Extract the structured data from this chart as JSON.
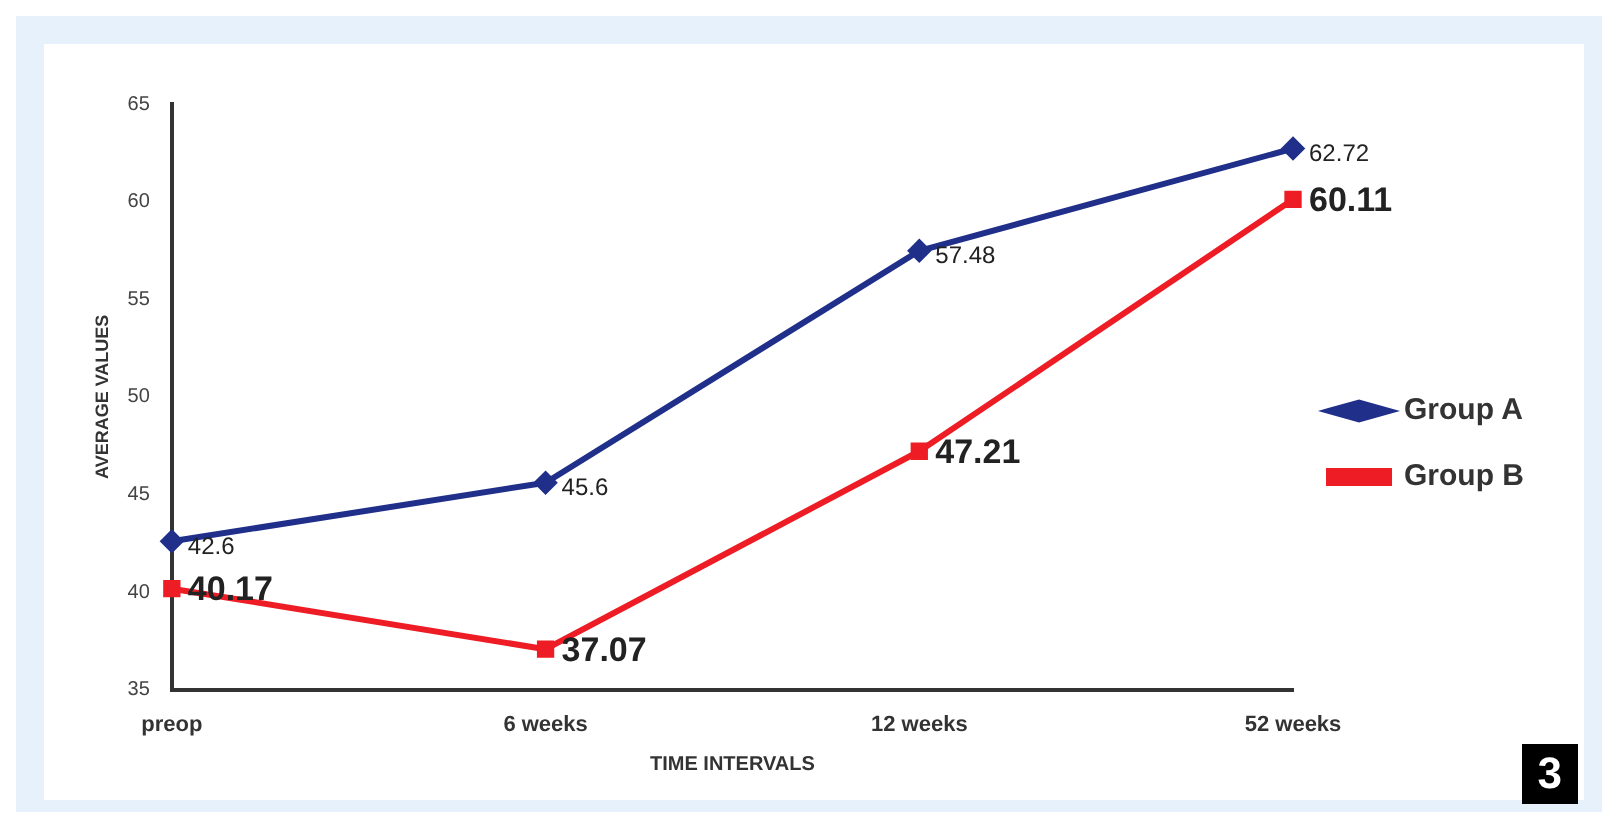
{
  "chart_data": {
    "type": "line",
    "xlabel": "TIME INTERVALS",
    "ylabel": "AVERAGE VALUES",
    "categories": [
      "preop",
      "6 weeks",
      "12 weeks",
      "52 weeks"
    ],
    "series": [
      {
        "name": "Group A",
        "color": "#1f2f8a",
        "values": [
          42.6,
          45.6,
          57.48,
          62.72
        ],
        "marker": "diamond"
      },
      {
        "name": "Group B",
        "color": "#ee1c25",
        "values": [
          40.17,
          37.07,
          47.21,
          60.11
        ],
        "marker": "square"
      }
    ],
    "ylim": [
      35,
      65
    ],
    "yticks": [
      35,
      40,
      45,
      50,
      55,
      60,
      65
    ],
    "grid": false,
    "legend": "right",
    "data_labels": true,
    "line_style": "solid",
    "annotations": [
      "3"
    ]
  }
}
